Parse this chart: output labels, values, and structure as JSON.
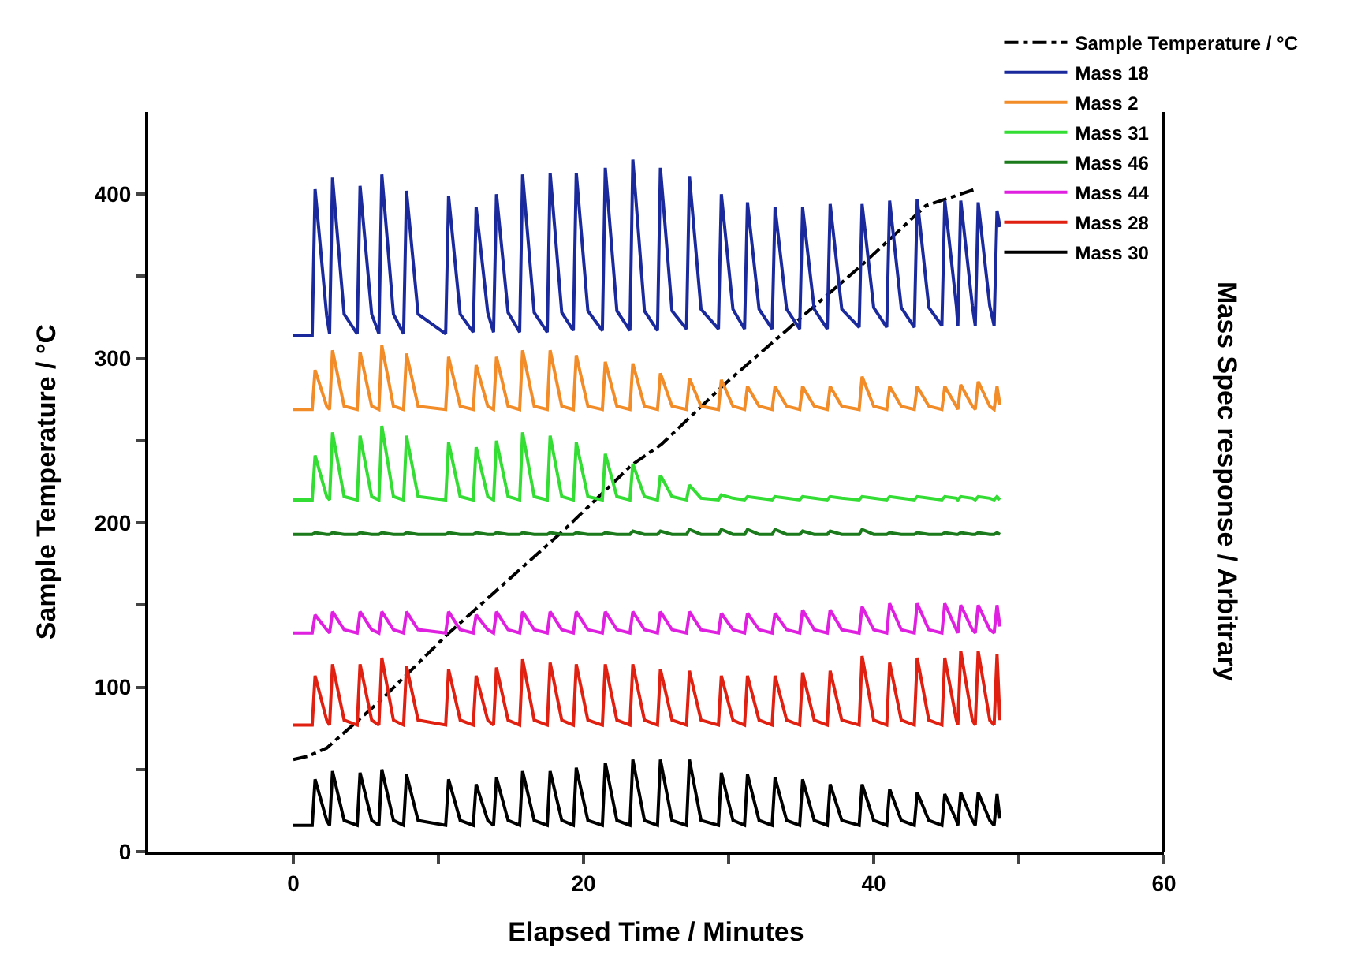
{
  "chart_data": {
    "type": "line",
    "xlabel": "Elapsed Time / Minutes",
    "ylabel": "Sample Temperature / °C",
    "y2label": "Mass Spec response / Arbitrary",
    "xlim": [
      -10,
      60
    ],
    "xticks": [
      0,
      {
        "value": 10,
        "label": null
      },
      20,
      {
        "value": 30,
        "label": null
      },
      40,
      {
        "value": 50,
        "label": null
      },
      60
    ],
    "ylim": [
      0,
      450
    ],
    "yticks": [
      0,
      {
        "value": 50,
        "label": null
      },
      100,
      {
        "value": 150,
        "label": null
      },
      200,
      {
        "value": 250,
        "label": null
      },
      300,
      {
        "value": 350,
        "label": null
      },
      400
    ],
    "legend": "top right",
    "marker": "none",
    "x": [
      0,
      1.3,
      1.5,
      2.3,
      2.5,
      2.7,
      3.5,
      4.4,
      4.6,
      5.4,
      5.9,
      6.1,
      6.9,
      7.6,
      7.8,
      8.6,
      10.5,
      10.7,
      11.5,
      12.4,
      12.6,
      13.4,
      13.8,
      14.0,
      14.8,
      15.6,
      15.8,
      16.6,
      17.5,
      17.7,
      18.5,
      19.3,
      19.5,
      20.3,
      21.3,
      21.5,
      22.3,
      23.2,
      23.4,
      24.2,
      25.1,
      25.3,
      26.1,
      27.1,
      27.3,
      28.1,
      29.3,
      29.5,
      30.3,
      31.1,
      31.3,
      32.1,
      33.0,
      33.2,
      34.0,
      34.9,
      35.1,
      35.9,
      36.8,
      37.0,
      37.8,
      39.0,
      39.2,
      40.0,
      40.9,
      41.1,
      41.9,
      42.8,
      43.0,
      43.8,
      44.7,
      44.9,
      45.7,
      45.8,
      46.0,
      46.8,
      47.0,
      47.2,
      48.0,
      48.3,
      48.5,
      48.7
    ],
    "series": [
      {
        "name": "Sample Temperature / °C",
        "color": "#000000",
        "line_style": "dashdot",
        "x": [
          0,
          1,
          2.3,
          5.9,
          10.6,
          18.7,
          23.3,
          25.4,
          29.8,
          34.1,
          39.2,
          43.6,
          47
        ],
        "values": [
          56,
          58,
          63,
          91,
          132,
          196,
          235,
          248,
          285,
          318,
          357,
          393,
          403
        ]
      },
      {
        "name": "Mass 18",
        "color": "#1a2a9c",
        "values": [
          314,
          314,
          403,
          326,
          315,
          410,
          327,
          315,
          405,
          327,
          315,
          412,
          327,
          315,
          402,
          327,
          315,
          399,
          327,
          316,
          392,
          328,
          316,
          400,
          328,
          316,
          412,
          328,
          316,
          413,
          328,
          317,
          413,
          329,
          317,
          416,
          329,
          317,
          421,
          329,
          317,
          416,
          329,
          318,
          411,
          330,
          318,
          400,
          330,
          318,
          395,
          330,
          318,
          392,
          330,
          318,
          392,
          330,
          318,
          394,
          330,
          319,
          394,
          331,
          319,
          396,
          331,
          319,
          397,
          331,
          320,
          396,
          332,
          320,
          396,
          332,
          320,
          395,
          332,
          320,
          390,
          380
        ]
      },
      {
        "name": "Mass 2",
        "color": "#f28c28",
        "values": [
          269,
          269,
          293,
          271,
          269,
          305,
          271,
          269,
          304,
          271,
          269,
          308,
          271,
          269,
          303,
          271,
          269,
          301,
          271,
          269,
          296,
          271,
          269,
          301,
          271,
          269,
          305,
          271,
          269,
          305,
          271,
          269,
          302,
          271,
          269,
          298,
          271,
          269,
          297,
          271,
          269,
          291,
          271,
          269,
          288,
          271,
          269,
          287,
          271,
          269,
          283,
          271,
          269,
          283,
          271,
          269,
          283,
          271,
          269,
          283,
          271,
          269,
          289,
          271,
          269,
          283,
          271,
          269,
          283,
          271,
          269,
          283,
          271,
          269,
          284,
          271,
          269,
          286,
          271,
          269,
          283,
          272
        ]
      },
      {
        "name": "Mass 31",
        "color": "#33dd33",
        "values": [
          214,
          214,
          241,
          216,
          214,
          255,
          216,
          214,
          253,
          216,
          214,
          259,
          216,
          214,
          253,
          216,
          214,
          249,
          216,
          214,
          246,
          216,
          214,
          250,
          216,
          214,
          255,
          216,
          214,
          253,
          216,
          214,
          249,
          216,
          214,
          242,
          216,
          214,
          236,
          216,
          214,
          229,
          216,
          214,
          223,
          215,
          214,
          217,
          215,
          214,
          216,
          215,
          214,
          216,
          215,
          214,
          216,
          215,
          214,
          216,
          215,
          214,
          216,
          215,
          214,
          216,
          215,
          214,
          216,
          215,
          214,
          216,
          215,
          214,
          216,
          215,
          214,
          216,
          215,
          214,
          216,
          214
        ]
      },
      {
        "name": "Mass 46",
        "color": "#1b7a1b",
        "values": [
          193,
          193,
          194,
          193,
          193,
          194,
          193,
          193,
          194,
          193,
          193,
          194,
          193,
          193,
          194,
          193,
          193,
          194,
          193,
          193,
          194,
          193,
          193,
          194,
          193,
          193,
          194,
          193,
          193,
          194,
          193,
          193,
          194,
          193,
          193,
          194,
          193,
          193,
          195,
          193,
          193,
          195,
          193,
          193,
          196,
          193,
          193,
          196,
          193,
          193,
          196,
          193,
          193,
          196,
          193,
          193,
          195,
          193,
          193,
          195,
          193,
          193,
          196,
          193,
          193,
          194,
          193,
          193,
          194,
          193,
          193,
          194,
          193,
          193,
          194,
          193,
          193,
          194,
          193,
          193,
          194,
          193
        ]
      },
      {
        "name": "Mass 44",
        "color": "#e020e0",
        "values": [
          133,
          133,
          144,
          135,
          133,
          146,
          135,
          133,
          146,
          135,
          133,
          146,
          135,
          133,
          146,
          135,
          133,
          146,
          135,
          133,
          144,
          135,
          133,
          146,
          135,
          133,
          146,
          135,
          133,
          146,
          135,
          133,
          146,
          135,
          133,
          146,
          135,
          133,
          146,
          135,
          133,
          146,
          135,
          133,
          146,
          135,
          133,
          145,
          135,
          133,
          145,
          135,
          133,
          145,
          135,
          133,
          147,
          135,
          133,
          147,
          135,
          133,
          149,
          135,
          133,
          151,
          135,
          133,
          151,
          135,
          133,
          151,
          135,
          133,
          150,
          135,
          133,
          150,
          135,
          133,
          150,
          137
        ]
      },
      {
        "name": "Mass 28",
        "color": "#e02010",
        "values": [
          77,
          77,
          107,
          80,
          77,
          114,
          80,
          77,
          114,
          80,
          77,
          118,
          80,
          77,
          113,
          80,
          77,
          111,
          80,
          77,
          107,
          80,
          77,
          112,
          80,
          77,
          117,
          80,
          77,
          115,
          80,
          77,
          114,
          80,
          77,
          114,
          80,
          77,
          114,
          80,
          77,
          111,
          80,
          77,
          110,
          80,
          77,
          107,
          80,
          77,
          107,
          80,
          77,
          107,
          80,
          77,
          109,
          80,
          77,
          110,
          80,
          77,
          119,
          80,
          77,
          115,
          80,
          77,
          118,
          80,
          77,
          118,
          80,
          77,
          122,
          80,
          77,
          122,
          80,
          77,
          120,
          80
        ]
      },
      {
        "name": "Mass 30",
        "color": "#000000",
        "values": [
          16,
          16,
          44,
          19,
          16,
          49,
          19,
          16,
          48,
          19,
          16,
          50,
          19,
          16,
          47,
          19,
          16,
          44,
          19,
          16,
          41,
          19,
          16,
          45,
          19,
          16,
          49,
          19,
          16,
          49,
          19,
          16,
          51,
          19,
          16,
          54,
          19,
          16,
          56,
          19,
          16,
          56,
          19,
          16,
          56,
          19,
          16,
          48,
          19,
          16,
          47,
          19,
          16,
          45,
          19,
          16,
          44,
          19,
          16,
          41,
          19,
          16,
          41,
          19,
          16,
          38,
          19,
          16,
          36,
          19,
          16,
          35,
          19,
          16,
          36,
          19,
          16,
          36,
          19,
          16,
          35,
          20
        ]
      }
    ]
  }
}
